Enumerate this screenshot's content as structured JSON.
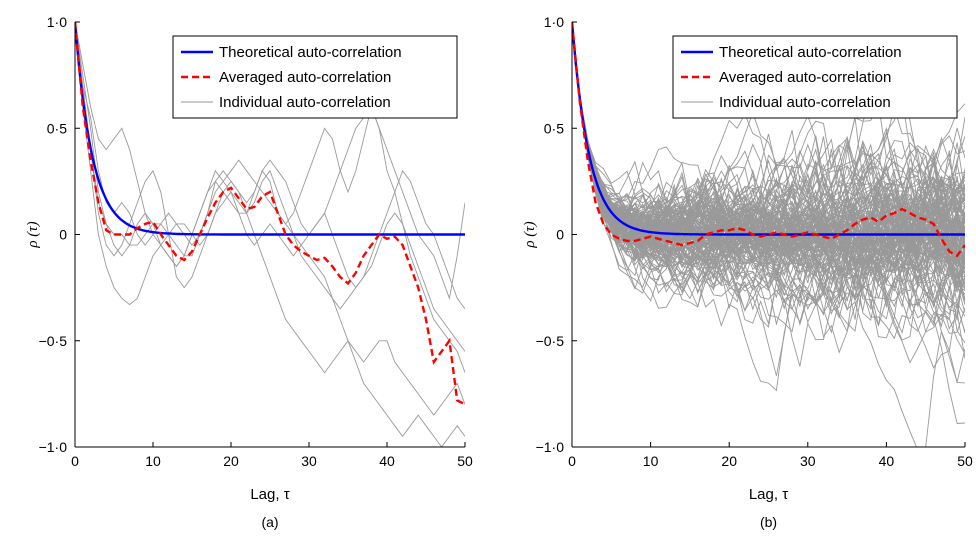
{
  "chart_data": [
    {
      "type": "line",
      "panel_label": "(a)",
      "xlabel": "Lag, τ",
      "ylabel": "ρ (τ)",
      "xlim": [
        0,
        50
      ],
      "ylim": [
        -1.0,
        1.0
      ],
      "xticks": [
        "0",
        "10",
        "20",
        "30",
        "40",
        "50"
      ],
      "yticks": [
        "−1·0",
        "−0·5",
        "0",
        "0·5",
        "1·0"
      ],
      "grid": false,
      "legend_position": "top-right",
      "colors": {
        "theoretical": "#0000ff",
        "averaged": "#ff0000",
        "individual": "#999999"
      },
      "theoretical": {
        "name": "Theoretical auto-correlation",
        "decay_rate": 0.45
      },
      "averaged": {
        "name": "Averaged auto-correlation",
        "x": [
          0,
          1,
          2,
          3,
          4,
          5,
          6,
          7,
          8,
          9,
          10,
          11,
          12,
          13,
          14,
          15,
          16,
          17,
          18,
          19,
          20,
          21,
          22,
          23,
          24,
          25,
          26,
          27,
          28,
          29,
          30,
          31,
          32,
          33,
          34,
          35,
          36,
          37,
          38,
          39,
          40,
          41,
          42,
          43,
          44,
          45,
          46,
          47,
          48,
          49,
          50
        ],
        "y": [
          1.0,
          0.6,
          0.35,
          0.15,
          0.02,
          0.0,
          0.0,
          0.0,
          0.03,
          0.05,
          0.06,
          0.0,
          -0.05,
          -0.1,
          -0.12,
          -0.08,
          0.0,
          0.08,
          0.15,
          0.2,
          0.22,
          0.17,
          0.12,
          0.13,
          0.18,
          0.2,
          0.1,
          0.0,
          -0.05,
          -0.08,
          -0.1,
          -0.12,
          -0.11,
          -0.15,
          -0.2,
          -0.23,
          -0.18,
          -0.1,
          -0.05,
          0.0,
          -0.02,
          -0.01,
          -0.05,
          -0.15,
          -0.25,
          -0.4,
          -0.6,
          -0.55,
          -0.5,
          -0.78,
          -0.8
        ]
      },
      "individual": {
        "name": "Individual auto-correlation",
        "count": 6,
        "x_step": 1,
        "series": [
          [
            1.0,
            0.75,
            0.5,
            0.2,
            0.05,
            -0.05,
            -0.1,
            -0.05,
            0.05,
            0.1,
            0.05,
            -0.05,
            -0.1,
            -0.15,
            -0.1,
            0.0,
            0.1,
            0.2,
            0.3,
            0.25,
            0.2,
            0.15,
            0.1,
            0.2,
            0.3,
            0.25,
            0.1,
            0.05,
            0.1,
            0.2,
            0.3,
            0.4,
            0.5,
            0.45,
            0.3,
            0.2,
            0.3,
            0.45,
            0.6,
            0.5,
            0.3,
            0.2,
            0.05,
            -0.1,
            -0.2,
            -0.3,
            -0.4,
            -0.45,
            -0.5,
            -0.55,
            -0.65
          ],
          [
            1.0,
            0.6,
            0.3,
            0.0,
            -0.15,
            -0.25,
            -0.3,
            -0.33,
            -0.3,
            -0.2,
            -0.1,
            -0.05,
            -0.1,
            -0.15,
            -0.1,
            0.0,
            0.1,
            0.2,
            0.25,
            0.3,
            0.25,
            0.2,
            0.1,
            0.0,
            -0.1,
            -0.2,
            -0.3,
            -0.4,
            -0.45,
            -0.5,
            -0.55,
            -0.6,
            -0.65,
            -0.6,
            -0.55,
            -0.5,
            -0.55,
            -0.6,
            -0.55,
            -0.5,
            -0.5,
            -0.6,
            -0.65,
            -0.7,
            -0.75,
            -0.8,
            -0.85,
            -0.8,
            -0.75,
            -0.7,
            -0.8
          ],
          [
            1.0,
            0.7,
            0.55,
            0.3,
            0.15,
            0.1,
            0.15,
            0.1,
            0.0,
            -0.05,
            0.0,
            0.05,
            0.1,
            0.05,
            0.0,
            -0.05,
            0.0,
            0.1,
            0.2,
            0.25,
            0.3,
            0.35,
            0.3,
            0.25,
            0.2,
            0.15,
            0.1,
            0.05,
            0.0,
            -0.05,
            -0.1,
            -0.15,
            -0.2,
            -0.3,
            -0.4,
            -0.5,
            -0.6,
            -0.7,
            -0.75,
            -0.8,
            -0.85,
            -0.9,
            -0.95,
            -0.9,
            -0.85,
            -0.9,
            -0.95,
            -1.0,
            -0.95,
            -0.9,
            -0.95
          ],
          [
            1.0,
            0.65,
            0.4,
            0.1,
            -0.05,
            -0.1,
            -0.05,
            0.05,
            0.15,
            0.25,
            0.3,
            0.2,
            0.0,
            -0.2,
            -0.25,
            -0.2,
            -0.1,
            0.0,
            0.1,
            0.15,
            0.2,
            0.1,
            0.0,
            -0.05,
            0.0,
            0.05,
            0.0,
            -0.05,
            -0.1,
            -0.05,
            0.0,
            0.05,
            0.1,
            0.2,
            0.3,
            0.4,
            0.5,
            0.55,
            0.6,
            0.5,
            0.4,
            0.3,
            0.2,
            0.1,
            0.0,
            -0.05,
            -0.1,
            -0.2,
            -0.3,
            -0.1,
            0.15
          ],
          [
            1.0,
            0.8,
            0.6,
            0.45,
            0.4,
            0.45,
            0.5,
            0.4,
            0.25,
            0.1,
            0.0,
            -0.05,
            0.0,
            0.05,
            0.05,
            0.0,
            -0.05,
            0.0,
            0.1,
            0.2,
            0.25,
            0.2,
            0.15,
            0.2,
            0.3,
            0.35,
            0.3,
            0.25,
            0.15,
            0.05,
            0.0,
            0.05,
            0.1,
            0.0,
            -0.1,
            -0.2,
            -0.25,
            -0.2,
            -0.1,
            0.0,
            0.1,
            0.2,
            0.3,
            0.25,
            0.15,
            0.05,
            0.0,
            -0.1,
            -0.2,
            -0.3,
            -0.35
          ],
          [
            1.0,
            0.7,
            0.4,
            0.15,
            0.05,
            0.0,
            0.0,
            -0.05,
            -0.05,
            0.0,
            0.05,
            0.05,
            0.0,
            -0.05,
            -0.1,
            -0.1,
            0.0,
            0.1,
            0.25,
            0.2,
            0.15,
            0.1,
            0.1,
            0.15,
            0.25,
            0.3,
            0.2,
            0.1,
            0.0,
            -0.1,
            -0.15,
            -0.2,
            -0.25,
            -0.3,
            -0.35,
            -0.3,
            -0.25,
            -0.2,
            -0.15,
            -0.05,
            0.05,
            0.1,
            0.05,
            -0.05,
            -0.15,
            -0.25,
            -0.35,
            -0.4,
            -0.45,
            -0.5,
            -0.55
          ]
        ]
      }
    },
    {
      "type": "line",
      "panel_label": "(b)",
      "xlabel": "Lag, τ",
      "ylabel": "ρ (τ)",
      "xlim": [
        0,
        50
      ],
      "ylim": [
        -1.0,
        1.0
      ],
      "xticks": [
        "0",
        "10",
        "20",
        "30",
        "40",
        "50"
      ],
      "yticks": [
        "−1·0",
        "−0·5",
        "0",
        "0·5",
        "1·0"
      ],
      "grid": false,
      "legend_position": "top-right",
      "colors": {
        "theoretical": "#0000ff",
        "averaged": "#ff0000",
        "individual": "#999999"
      },
      "theoretical": {
        "name": "Theoretical auto-correlation",
        "decay_rate": 0.45
      },
      "averaged": {
        "name": "Averaged auto-correlation",
        "x": [
          0,
          1,
          2,
          3,
          4,
          5,
          6,
          7,
          8,
          9,
          10,
          11,
          12,
          13,
          14,
          15,
          16,
          17,
          18,
          19,
          20,
          21,
          22,
          23,
          24,
          25,
          26,
          27,
          28,
          29,
          30,
          31,
          32,
          33,
          34,
          35,
          36,
          37,
          38,
          39,
          40,
          41,
          42,
          43,
          44,
          45,
          46,
          47,
          48,
          49,
          50
        ],
        "y": [
          1.0,
          0.62,
          0.35,
          0.15,
          0.05,
          0.0,
          -0.02,
          -0.03,
          -0.03,
          -0.02,
          -0.01,
          -0.02,
          -0.03,
          -0.04,
          -0.05,
          -0.04,
          -0.03,
          0.0,
          0.01,
          0.02,
          0.02,
          0.03,
          0.02,
          0.0,
          -0.01,
          0.0,
          0.01,
          0.0,
          -0.01,
          0.0,
          0.01,
          0.0,
          -0.01,
          -0.02,
          0.0,
          0.02,
          0.05,
          0.07,
          0.08,
          0.06,
          0.09,
          0.1,
          0.12,
          0.1,
          0.08,
          0.07,
          0.05,
          -0.02,
          -0.08,
          -0.1,
          -0.05
        ]
      },
      "individual": {
        "name": "Individual auto-correlation",
        "count": 150,
        "x_step": 1
      }
    }
  ]
}
